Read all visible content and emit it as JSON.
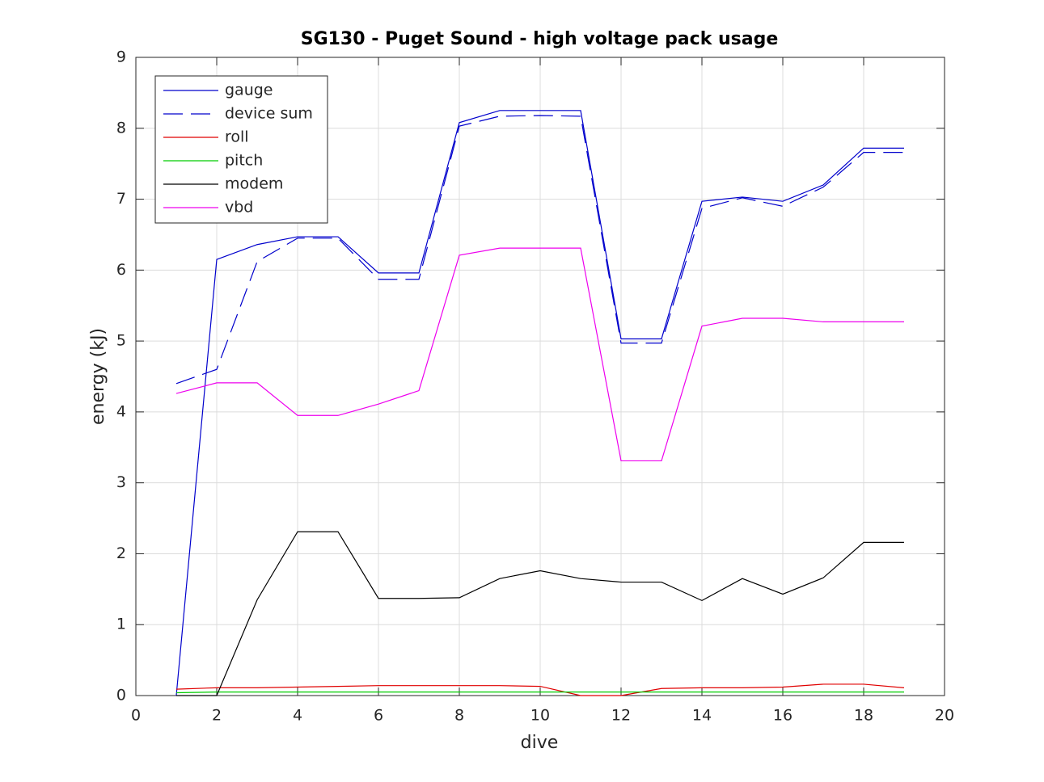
{
  "chart_data": {
    "type": "line",
    "title": "SG130 - Puget Sound - high voltage pack usage",
    "xlabel": "dive",
    "ylabel": "energy (kJ)",
    "x": [
      1,
      2,
      3,
      4,
      5,
      6,
      7,
      8,
      9,
      10,
      11,
      12,
      13,
      14,
      15,
      16,
      17,
      18,
      19
    ],
    "series": [
      {
        "name": "gauge",
        "color": "#0000cc",
        "linestyle": "solid",
        "values": [
          0,
          6.15,
          6.36,
          6.47,
          6.47,
          5.96,
          5.96,
          8.08,
          8.25,
          8.25,
          8.25,
          5.03,
          5.03,
          6.97,
          7.03,
          6.97,
          7.2,
          7.72,
          7.72
        ]
      },
      {
        "name": "device sum",
        "color": "#0000cc",
        "linestyle": "dashed",
        "values": [
          4.4,
          4.6,
          6.12,
          6.45,
          6.45,
          5.87,
          5.87,
          8.03,
          8.17,
          8.18,
          8.17,
          4.97,
          4.97,
          6.87,
          7.02,
          6.9,
          7.17,
          7.66,
          7.66
        ]
      },
      {
        "name": "roll",
        "color": "#e00000",
        "linestyle": "solid",
        "values": [
          0.09,
          0.11,
          0.11,
          0.12,
          0.13,
          0.14,
          0.14,
          0.14,
          0.14,
          0.13,
          0,
          0,
          0.1,
          0.11,
          0.11,
          0.12,
          0.16,
          0.16,
          0.11
        ]
      },
      {
        "name": "pitch",
        "color": "#00cc00",
        "linestyle": "solid",
        "values": [
          0.04,
          0.05,
          0.05,
          0.05,
          0.05,
          0.05,
          0.05,
          0.05,
          0.05,
          0.05,
          0.05,
          0.05,
          0.05,
          0.05,
          0.05,
          0.05,
          0.05,
          0.05,
          0.05
        ]
      },
      {
        "name": "modem",
        "color": "#000000",
        "linestyle": "solid",
        "values": [
          0,
          0,
          1.35,
          2.31,
          2.31,
          1.37,
          1.37,
          1.38,
          1.65,
          1.76,
          1.65,
          1.6,
          1.6,
          1.34,
          1.65,
          1.43,
          1.66,
          2.16,
          2.16
        ]
      },
      {
        "name": "vbd",
        "color": "#ee00ee",
        "linestyle": "solid",
        "values": [
          4.26,
          4.41,
          4.41,
          3.95,
          3.95,
          4.11,
          4.3,
          6.21,
          6.31,
          6.31,
          6.31,
          3.31,
          3.31,
          5.21,
          5.32,
          5.32,
          5.27,
          5.27,
          5.27
        ]
      }
    ],
    "xlim": [
      0,
      20
    ],
    "xticks": [
      0,
      2,
      4,
      6,
      8,
      10,
      12,
      14,
      16,
      18,
      20
    ],
    "ylim": [
      0,
      9
    ],
    "yticks": [
      0,
      1,
      2,
      3,
      4,
      5,
      6,
      7,
      8,
      9
    ],
    "grid": true,
    "legend": "northwest"
  }
}
